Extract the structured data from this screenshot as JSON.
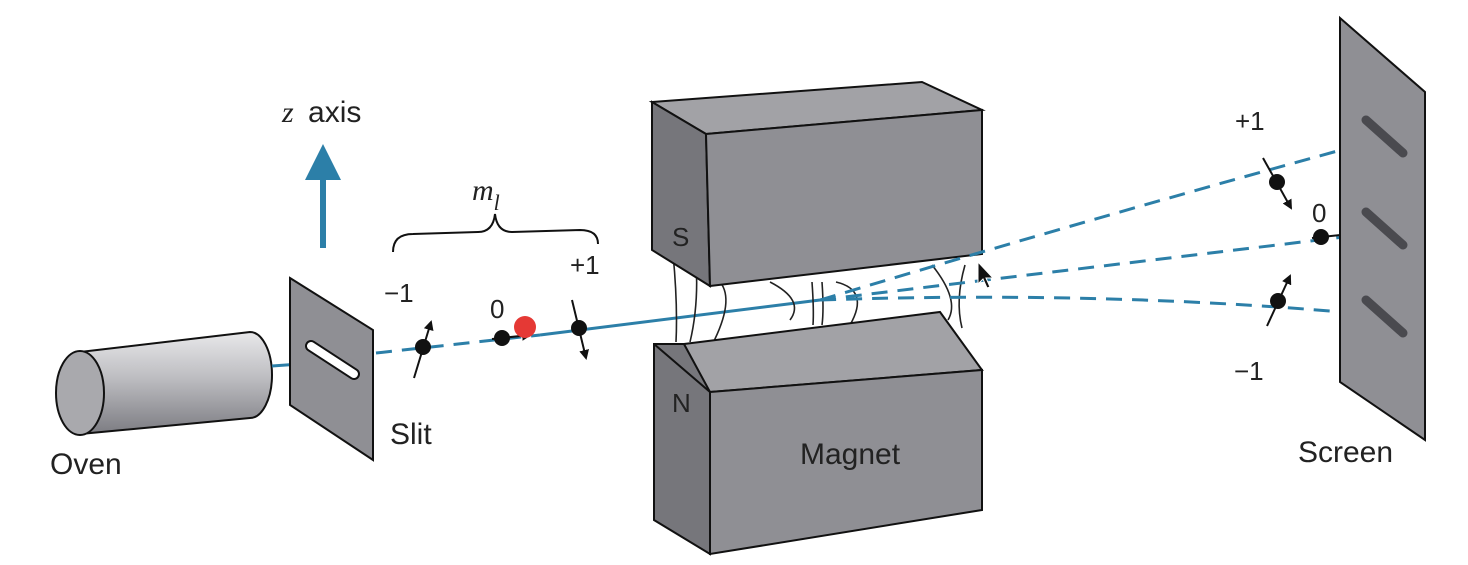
{
  "labels": {
    "z_axis_var": "z",
    "z_axis_text": "axis",
    "ml_m": "m",
    "ml_sub": "l",
    "slit": "Slit",
    "oven": "Oven",
    "magnet": "Magnet",
    "screen": "Screen",
    "pole_s": "S",
    "pole_n": "N",
    "beam_left_minus1": "−1",
    "beam_left_0": "0",
    "beam_left_plus1": "+1",
    "beam_right_plus1": "+1",
    "beam_right_0": "0",
    "beam_right_minus1": "−1"
  },
  "colors": {
    "beam": "#2c7fa8",
    "z_arrow": "#2c7fa8",
    "pointer_dot": "#e53935",
    "device_gray": "#8f8f94"
  },
  "icons": {
    "pointer": "mouse-cursor-icon",
    "highlight": "red-dot-marker"
  }
}
